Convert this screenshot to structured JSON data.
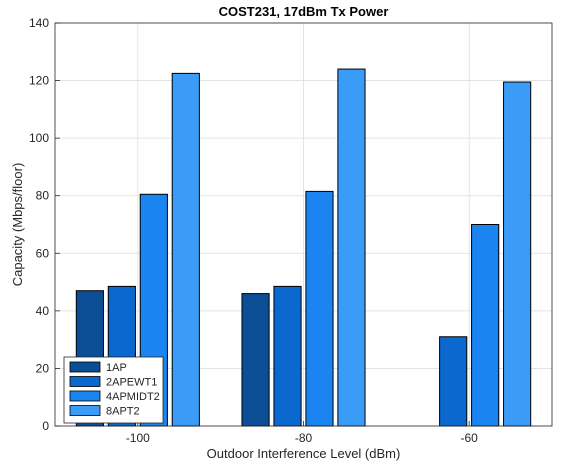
{
  "chart_data": {
    "type": "bar",
    "title": "COST231, 17dBm Tx Power",
    "xlabel": "Outdoor Interference Level (dBm)",
    "ylabel": "Capacity (Mbps/floor)",
    "categories": [
      "-100",
      "-80",
      "-60"
    ],
    "ylim": [
      0,
      140
    ],
    "yticks": [
      0,
      20,
      40,
      60,
      80,
      100,
      120,
      140
    ],
    "grid": true,
    "legend_position": "bottom-left",
    "series": [
      {
        "name": "1AP",
        "color": "#0b4e96",
        "values": [
          47,
          46,
          0
        ]
      },
      {
        "name": "2APEWT1",
        "color": "#0a68cf",
        "values": [
          48.5,
          48.5,
          31
        ]
      },
      {
        "name": "4APMIDT2",
        "color": "#1a84f0",
        "values": [
          80.5,
          81.5,
          70
        ]
      },
      {
        "name": "8APT2",
        "color": "#3b9cf7",
        "values": [
          122.5,
          124,
          119.5
        ]
      }
    ]
  }
}
